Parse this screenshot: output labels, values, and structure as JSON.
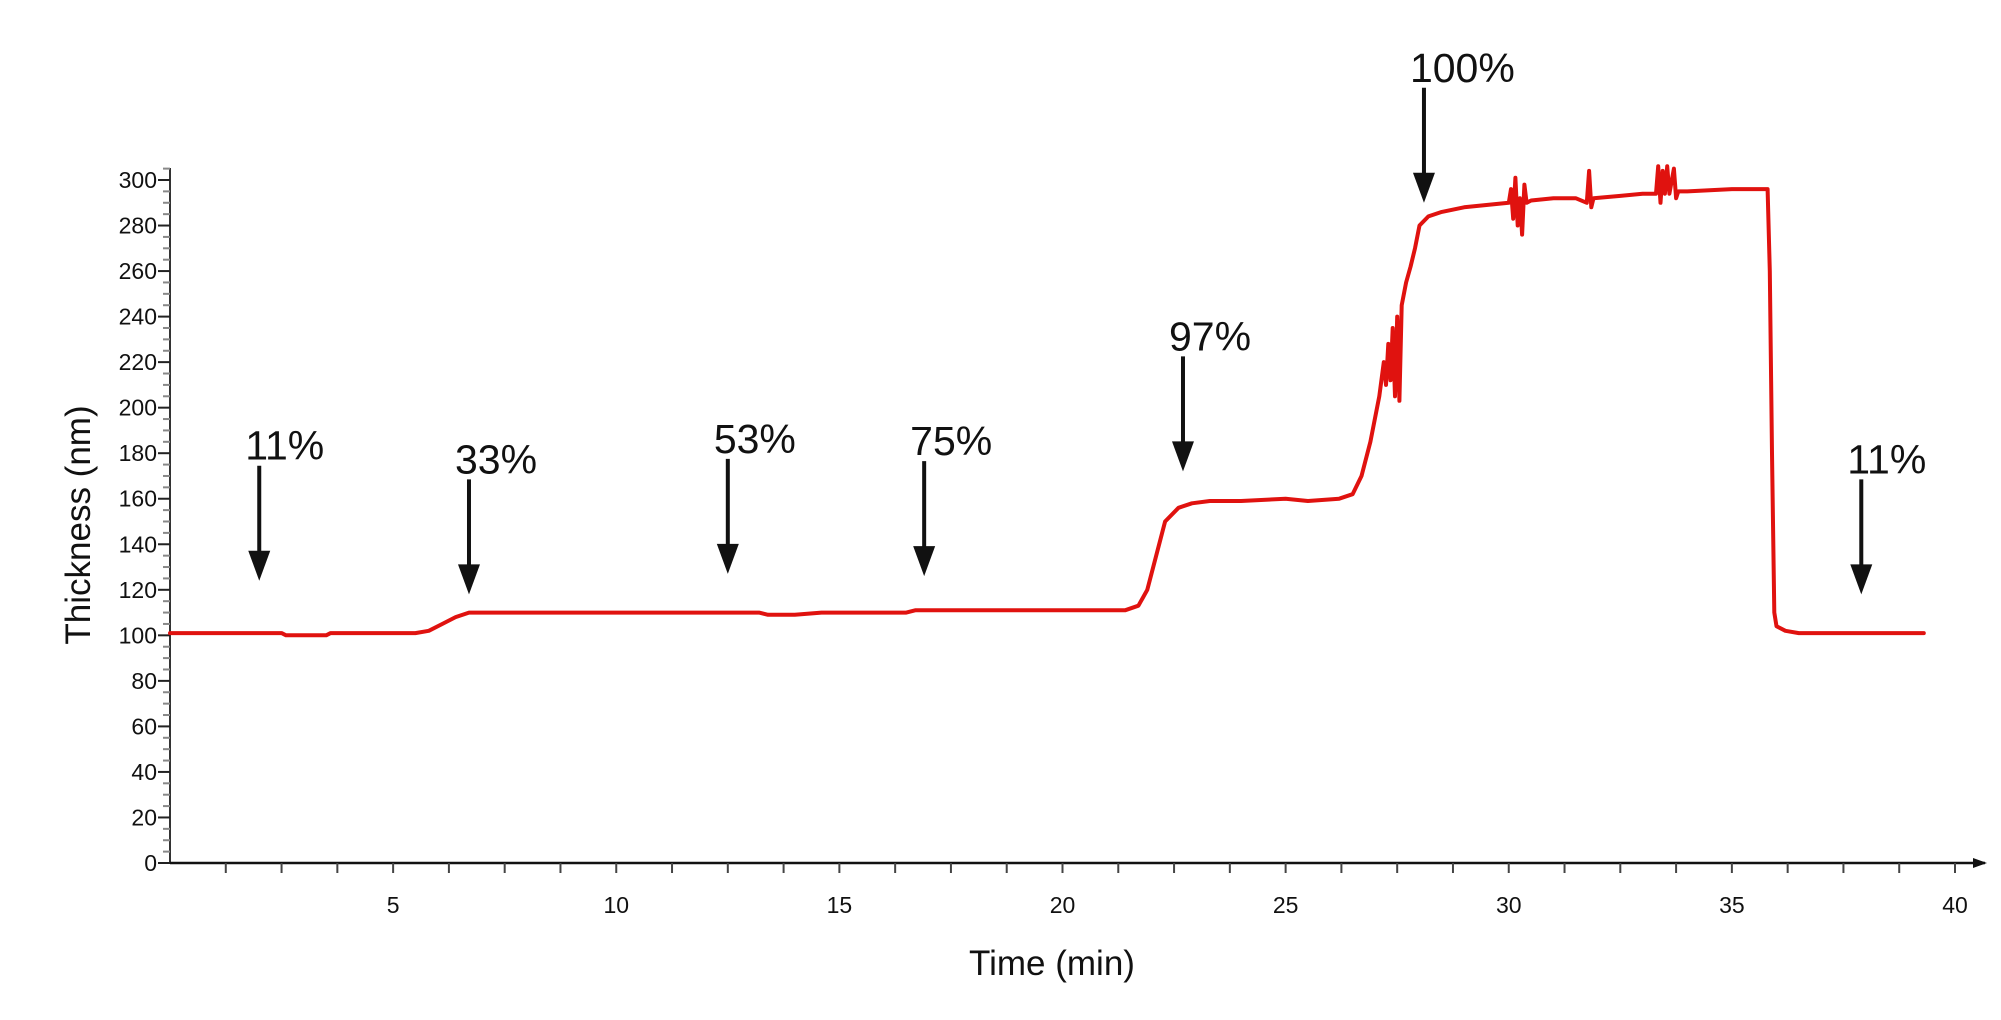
{
  "chart_data": {
    "type": "line",
    "title": "",
    "xlabel": "Time (min)",
    "ylabel": "Thickness  (nm)",
    "xlim": [
      0,
      40
    ],
    "ylim": [
      0,
      300
    ],
    "x_ticks": [
      5,
      10,
      15,
      20,
      25,
      30,
      35,
      40
    ],
    "y_ticks": [
      0,
      20,
      40,
      60,
      80,
      100,
      120,
      140,
      160,
      180,
      200,
      220,
      240,
      260,
      280,
      300
    ],
    "grid": false,
    "line_color": "#e0120f",
    "series": [
      {
        "x": [
          0,
          2.5,
          2.6,
          3.5,
          3.6,
          5.5,
          5.8,
          6.1,
          6.4,
          6.7,
          7.0,
          10,
          13.2,
          13.4,
          14,
          14.6,
          15,
          16.5,
          16.7,
          20,
          21.4,
          21.7,
          21.9,
          22.1,
          22.3,
          22.6,
          22.9,
          23.3,
          24,
          25,
          25.5,
          26.2,
          26.5,
          26.7,
          26.9,
          27.1,
          27.2,
          27.25,
          27.3,
          27.35,
          27.4,
          27.45,
          27.5,
          27.55,
          27.6,
          27.7,
          27.8,
          27.9,
          28.0,
          28.2,
          28.5,
          29,
          29.5,
          30,
          30.05,
          30.1,
          30.15,
          30.2,
          30.25,
          30.3,
          30.35,
          30.4,
          30.5,
          31,
          31.5,
          31.75,
          31.8,
          31.85,
          31.9,
          32.5,
          33,
          33.3,
          33.35,
          33.4,
          33.45,
          33.5,
          33.55,
          33.6,
          33.7,
          33.75,
          33.8,
          34,
          35,
          35.7,
          35.8,
          35.85,
          35.9,
          35.95,
          36.0,
          36.2,
          36.5,
          39.3
        ],
        "y": [
          101,
          101,
          100,
          100,
          101,
          101,
          102,
          105,
          108,
          110,
          110,
          110,
          110,
          109,
          109,
          110,
          110,
          110,
          111,
          111,
          111,
          113,
          120,
          135,
          150,
          156,
          158,
          159,
          159,
          160,
          159,
          160,
          162,
          170,
          185,
          205,
          220,
          210,
          228,
          212,
          235,
          205,
          240,
          203,
          245,
          255,
          262,
          270,
          280,
          284,
          286,
          288,
          289,
          290,
          296,
          283,
          301,
          280,
          292,
          276,
          298,
          290,
          291,
          292,
          292,
          290,
          304,
          288,
          292,
          293,
          294,
          294,
          306,
          290,
          304,
          294,
          306,
          294,
          305,
          292,
          295,
          295,
          296,
          296,
          296,
          260,
          180,
          110,
          104,
          102,
          101,
          101
        ]
      }
    ],
    "annotations": [
      {
        "label": "11%",
        "x": 2.0,
        "y_arrow_tip": 124
      },
      {
        "label": "33%",
        "x": 6.7,
        "y_arrow_tip": 118
      },
      {
        "label": "53%",
        "x": 12.5,
        "y_arrow_tip": 127
      },
      {
        "label": "75%",
        "x": 16.9,
        "y_arrow_tip": 126
      },
      {
        "label": "97%",
        "x": 22.7,
        "y_arrow_tip": 172
      },
      {
        "label": "100%",
        "x": 28.1,
        "y_arrow_tip": 290
      },
      {
        "label": "11%",
        "x": 37.9,
        "y_arrow_tip": 118
      }
    ]
  }
}
